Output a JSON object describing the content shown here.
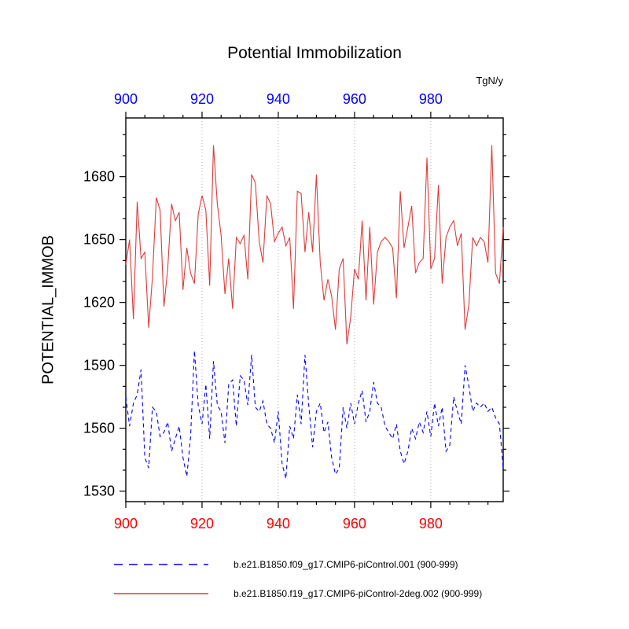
{
  "title": "Potential Immobilization",
  "units_label": "TgN/y",
  "y_axis_label": "POTENTIAL_IMMOB",
  "colors": {
    "series_blue": "#0000ff",
    "series_red": "#e03a3a",
    "top_axis_labels": "#0000ff",
    "bottom_axis_labels": "#ff0000",
    "y_axis_labels": "#000000",
    "grid": "#b0b0b0",
    "frame": "#000000"
  },
  "legend": [
    {
      "label": "b.e21.B1850.f09_g17.CMIP6-piControl.001 (900-999)",
      "style": "dashed",
      "color": "#0000ff"
    },
    {
      "label": "b.e21.B1850.f19_g17.CMIP6-piControl-2deg.002 (900-999)",
      "style": "solid",
      "color": "#e03a3a"
    }
  ],
  "chart_data": {
    "type": "line",
    "xlabel": "",
    "ylabel": "POTENTIAL_IMMOB",
    "units": "TgN/y",
    "xlim": [
      900,
      999
    ],
    "ylim": [
      1525,
      1708
    ],
    "x_major_ticks": [
      900,
      920,
      940,
      960,
      980
    ],
    "x_minor_step": 5,
    "y_major_ticks": [
      1530,
      1560,
      1590,
      1620,
      1650,
      1680
    ],
    "y_minor_step": 10,
    "grid_x": [
      920,
      940,
      960,
      980
    ],
    "x_start": 900,
    "series": [
      {
        "name": "b.e21.B1850.f09_g17.CMIP6-piControl.001 (900-999)",
        "color": "#0000ff",
        "dash": "5 4",
        "values": [
          1575,
          1561,
          1572,
          1576,
          1588,
          1546,
          1541,
          1570,
          1568,
          1556,
          1558,
          1563,
          1549,
          1555,
          1561,
          1546,
          1537,
          1556,
          1597,
          1571,
          1562,
          1581,
          1555,
          1592,
          1571,
          1568,
          1553,
          1581,
          1583,
          1561,
          1585,
          1583,
          1571,
          1595,
          1570,
          1568,
          1573,
          1562,
          1560,
          1553,
          1568,
          1543,
          1536,
          1561,
          1555,
          1576,
          1562,
          1595,
          1571,
          1551,
          1568,
          1572,
          1558,
          1563,
          1546,
          1538,
          1541,
          1570,
          1560,
          1572,
          1562,
          1572,
          1578,
          1563,
          1568,
          1582,
          1572,
          1570,
          1561,
          1558,
          1555,
          1562,
          1549,
          1543,
          1549,
          1560,
          1555,
          1563,
          1558,
          1568,
          1556,
          1572,
          1561,
          1570,
          1549,
          1552,
          1575,
          1568,
          1562,
          1590,
          1580,
          1568,
          1572,
          1570,
          1572,
          1568,
          1570,
          1565,
          1562,
          1541
        ]
      },
      {
        "name": "b.e21.B1850.f19_g17.CMIP6-piControl-2deg.002 (900-999)",
        "color": "#e03a3a",
        "dash": null,
        "values": [
          1638,
          1650,
          1612,
          1668,
          1641,
          1644,
          1608,
          1632,
          1670,
          1664,
          1618,
          1636,
          1667,
          1659,
          1663,
          1626,
          1646,
          1634,
          1629,
          1662,
          1671,
          1664,
          1628,
          1695,
          1667,
          1652,
          1624,
          1641,
          1617,
          1651,
          1648,
          1652,
          1631,
          1681,
          1677,
          1649,
          1639,
          1671,
          1667,
          1649,
          1653,
          1656,
          1647,
          1651,
          1617,
          1673,
          1672,
          1644,
          1663,
          1644,
          1681,
          1639,
          1621,
          1631,
          1623,
          1607,
          1636,
          1641,
          1600,
          1613,
          1636,
          1631,
          1659,
          1621,
          1656,
          1619,
          1644,
          1649,
          1651,
          1649,
          1646,
          1622,
          1673,
          1646,
          1656,
          1666,
          1634,
          1639,
          1641,
          1689,
          1636,
          1641,
          1676,
          1629,
          1651,
          1656,
          1659,
          1647,
          1653,
          1607,
          1619,
          1651,
          1647,
          1651,
          1649,
          1639,
          1695,
          1634,
          1629,
          1656
        ]
      }
    ]
  }
}
